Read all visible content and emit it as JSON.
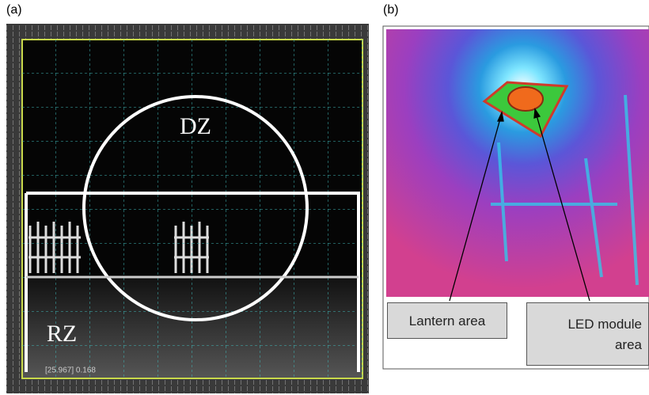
{
  "panels": [
    {
      "label": "(a)",
      "zones": [
        "DZ",
        "RZ"
      ],
      "readout": "[25.967] 0.168"
    },
    {
      "label": "(b)",
      "callouts": [
        "Lantern area",
        "LED module area"
      ]
    }
  ]
}
